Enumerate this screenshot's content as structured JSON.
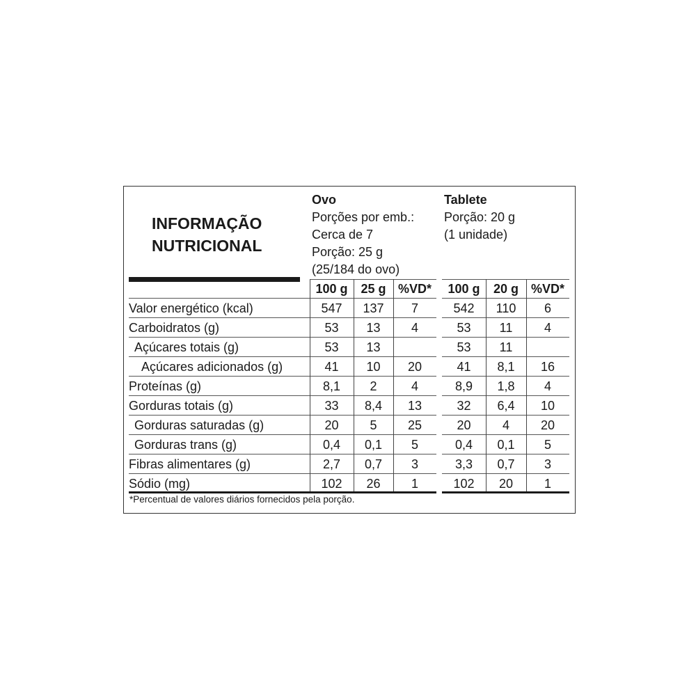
{
  "title": [
    "INFORMAÇÃO",
    "NUTRICIONAL"
  ],
  "ovo": {
    "name": "Ovo",
    "lines": [
      "Porções por emb.:",
      "Cerca de 7",
      "Porção: 25 g",
      "(25/184 do ovo)"
    ]
  },
  "tablete": {
    "name": "Tablete",
    "lines": [
      "Porção: 20 g",
      "(1 unidade)"
    ]
  },
  "columns": [
    "100 g",
    "25 g",
    "%VD*",
    "100 g",
    "20 g",
    "%VD*"
  ],
  "rows": [
    {
      "label": "Valor energético (kcal)",
      "indent": 0,
      "values": [
        "547",
        "137",
        "7",
        "542",
        "110",
        "6"
      ]
    },
    {
      "label": "Carboidratos (g)",
      "indent": 0,
      "values": [
        "53",
        "13",
        "4",
        "53",
        "11",
        "4"
      ]
    },
    {
      "label": "Açúcares totais (g)",
      "indent": 1,
      "values": [
        "53",
        "13",
        "",
        "53",
        "11",
        ""
      ]
    },
    {
      "label": "Açúcares adicionados (g)",
      "indent": 2,
      "values": [
        "41",
        "10",
        "20",
        "41",
        "8,1",
        "16"
      ]
    },
    {
      "label": "Proteínas (g)",
      "indent": 0,
      "values": [
        "8,1",
        "2",
        "4",
        "8,9",
        "1,8",
        "4"
      ]
    },
    {
      "label": "Gorduras totais (g)",
      "indent": 0,
      "values": [
        "33",
        "8,4",
        "13",
        "32",
        "6,4",
        "10"
      ]
    },
    {
      "label": "Gorduras saturadas (g)",
      "indent": 1,
      "values": [
        "20",
        "5",
        "25",
        "20",
        "4",
        "20"
      ]
    },
    {
      "label": "Gorduras trans (g)",
      "indent": 1,
      "values": [
        "0,4",
        "0,1",
        "5",
        "0,4",
        "0,1",
        "5"
      ]
    },
    {
      "label": "Fibras alimentares (g)",
      "indent": 0,
      "values": [
        "2,7",
        "0,7",
        "3",
        "3,3",
        "0,7",
        "3"
      ]
    },
    {
      "label": "Sódio (mg)",
      "indent": 0,
      "values": [
        "102",
        "26",
        "1",
        "102",
        "20",
        "1"
      ]
    }
  ],
  "footnote": "*Percentual de valores diários fornecidos pela porção."
}
